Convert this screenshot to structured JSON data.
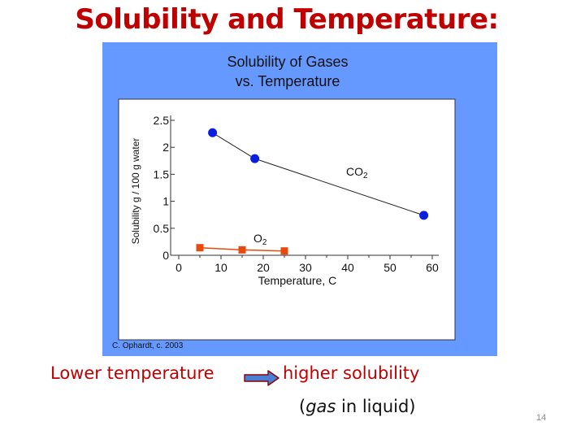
{
  "slide": {
    "title": "Solubility and Temperature:",
    "caption_left": "Lower temperature",
    "caption_right": "higher solubility",
    "caption_sub_prefix": "(",
    "caption_sub_italic": "gas",
    "caption_sub_suffix": " in liquid)",
    "page_number": "14",
    "arrow_icon": "right-arrow-icon",
    "colors": {
      "title": "#c00000",
      "panel_bg": "#6699ff",
      "arrow_fill": "#4a7fd6",
      "arrow_outline": "#8b0000"
    }
  },
  "chart_data": {
    "type": "line",
    "title_line1": "Solubility of Gases",
    "title_line2": "vs. Temperature",
    "xlabel": "Temperature, C",
    "ylabel": "Solubility g / 100 g water",
    "credit": "C. Ophardt, c. 2003",
    "xlim": [
      0,
      60
    ],
    "ylim": [
      0,
      2.5
    ],
    "x_ticks": [
      0,
      10,
      20,
      30,
      40,
      50,
      60
    ],
    "y_ticks": [
      0,
      0.5,
      1,
      1.5,
      2,
      2.5
    ],
    "y_tick_labels": [
      "0",
      "0.5",
      "1",
      "1.5",
      "2",
      "2.5"
    ],
    "grid": false,
    "series": [
      {
        "name": "CO2",
        "label_main": "CO",
        "label_sub": "2",
        "color": "#0a1ee0",
        "marker": "circle",
        "x": [
          8,
          18,
          58
        ],
        "y": [
          2.27,
          1.79,
          0.74
        ]
      },
      {
        "name": "O2",
        "label_main": "O",
        "label_sub": "2",
        "color": "#e84a0c",
        "marker": "square",
        "x": [
          5,
          15,
          25
        ],
        "y": [
          0.14,
          0.1,
          0.08
        ]
      }
    ]
  }
}
